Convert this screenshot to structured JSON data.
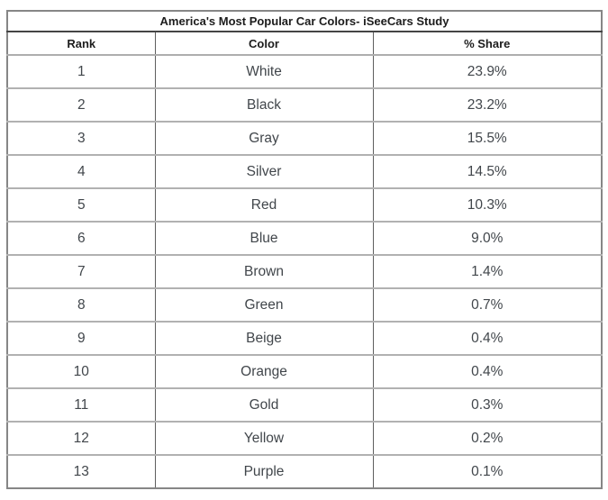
{
  "chart_data": {
    "type": "table",
    "title": "America's Most Popular Car Colors- iSeeCars Study",
    "columns": [
      "Rank",
      "Color",
      "% Share"
    ],
    "rows": [
      [
        "1",
        "White",
        "23.9%"
      ],
      [
        "2",
        "Black",
        "23.2%"
      ],
      [
        "3",
        "Gray",
        "15.5%"
      ],
      [
        "4",
        "Silver",
        "14.5%"
      ],
      [
        "5",
        "Red",
        "10.3%"
      ],
      [
        "6",
        "Blue",
        "9.0%"
      ],
      [
        "7",
        "Brown",
        "1.4%"
      ],
      [
        "8",
        "Green",
        "0.7%"
      ],
      [
        "9",
        "Beige",
        "0.4%"
      ],
      [
        "10",
        "Orange",
        "0.4%"
      ],
      [
        "11",
        "Gold",
        "0.3%"
      ],
      [
        "12",
        "Yellow",
        "0.2%"
      ],
      [
        "13",
        "Purple",
        "0.1%"
      ]
    ],
    "share_values_numeric": [
      23.9,
      23.2,
      15.5,
      14.5,
      10.3,
      9.0,
      1.4,
      0.7,
      0.4,
      0.4,
      0.3,
      0.2,
      0.1
    ],
    "layout": {
      "grid": true,
      "text_color_body": "#41464b",
      "text_color_header": "#1c1c1c",
      "border_outer": "#868686",
      "border_row": "#b1b1b1",
      "border_title": "#454545",
      "border_column": "#5e5e5e"
    }
  }
}
